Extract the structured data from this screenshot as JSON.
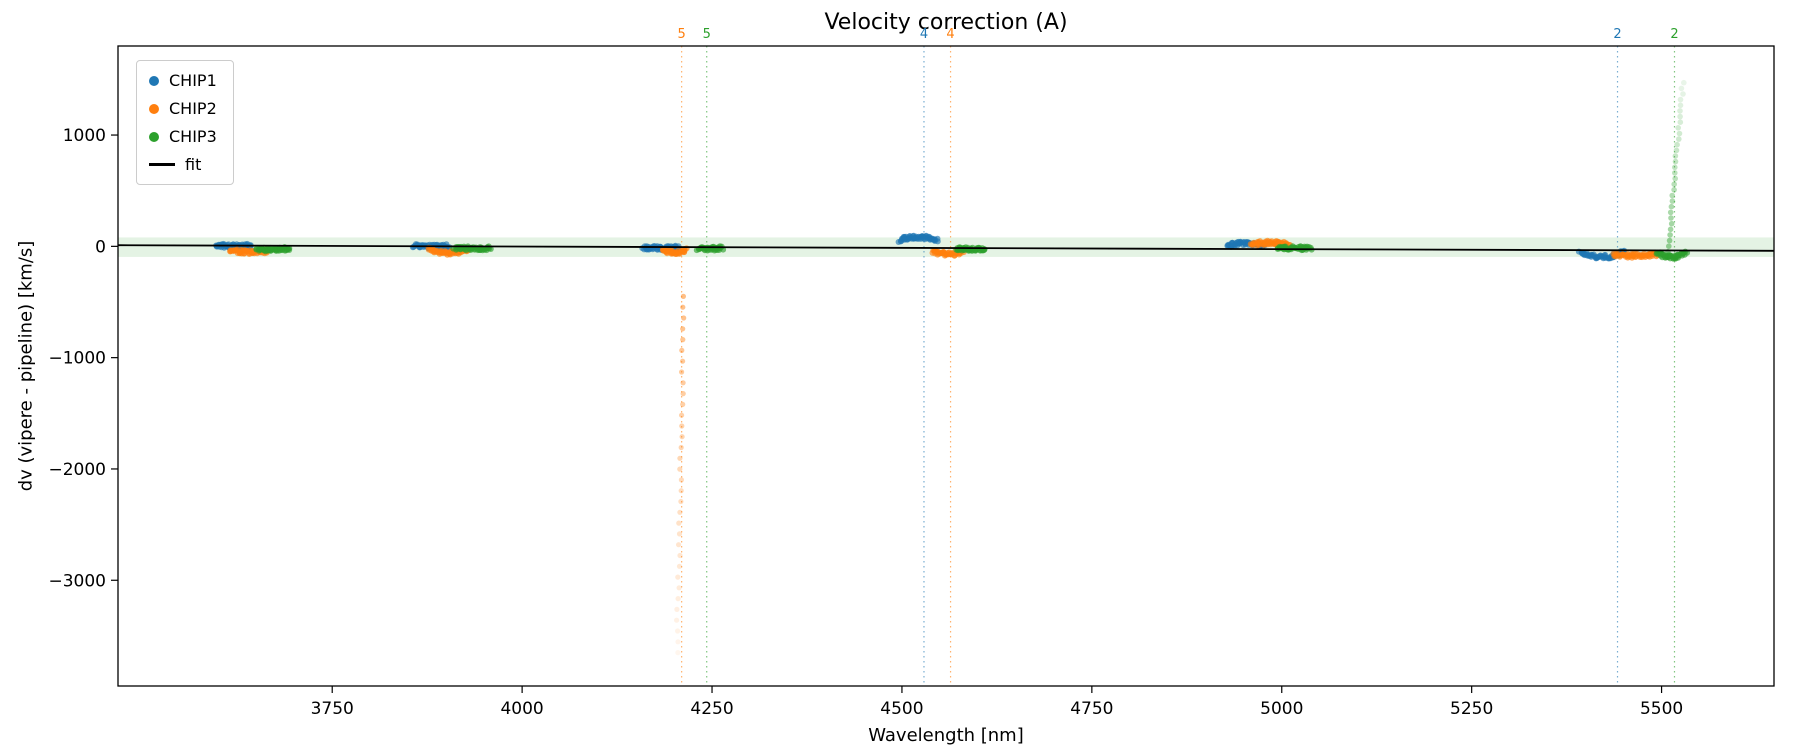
{
  "chart_data": {
    "type": "scatter",
    "title": "Velocity correction (A)",
    "xlabel": "Wavelength [nm]",
    "ylabel": "dv (vipere - pipeline) [km/s]",
    "xlim": [
      3468,
      5648
    ],
    "ylim": [
      -3950,
      1800
    ],
    "xticks": [
      3750,
      4000,
      4250,
      4500,
      4750,
      5000,
      5250,
      5500
    ],
    "yticks": [
      -3000,
      -2000,
      -1000,
      0,
      1000
    ],
    "grid": false,
    "band": {
      "y0": -95,
      "y1": 80,
      "color": "#2ca02c",
      "opacity": 0.13
    },
    "fit_line": {
      "label": "fit",
      "color": "#000000",
      "points": [
        [
          3468,
          10
        ],
        [
          5648,
          -40
        ]
      ]
    },
    "vlines": [
      {
        "x": 4210,
        "label": "5",
        "color": "#ff7f0e"
      },
      {
        "x": 4243,
        "label": "5",
        "color": "#2ca02c"
      },
      {
        "x": 4529,
        "label": "4",
        "color": "#1f77b4"
      },
      {
        "x": 4564,
        "label": "4",
        "color": "#ff7f0e"
      },
      {
        "x": 5442,
        "label": "2",
        "color": "#1f77b4"
      },
      {
        "x": 5517,
        "label": "2",
        "color": "#2ca02c"
      }
    ],
    "series": [
      {
        "name": "CHIP1",
        "color": "#1f77b4",
        "clusters": [
          {
            "x0": 3597,
            "x1": 3643,
            "y": 8,
            "bend": -6,
            "n": 55
          },
          {
            "x0": 3858,
            "x1": 3903,
            "y": 4,
            "bend": -6,
            "n": 55
          },
          {
            "x0": 4159,
            "x1": 4206,
            "y": -10,
            "bend": -6,
            "n": 55
          },
          {
            "x0": 4497,
            "x1": 4546,
            "y": 55,
            "bend": 28,
            "n": 60
          },
          {
            "x0": 4928,
            "x1": 4976,
            "y": 8,
            "bend": 18,
            "n": 55
          },
          {
            "x0": 5392,
            "x1": 5450,
            "y": -55,
            "bend": -40,
            "n": 60
          }
        ]
      },
      {
        "name": "CHIP2",
        "color": "#ff7f0e",
        "clusters": [
          {
            "x0": 3616,
            "x1": 3667,
            "y": -38,
            "bend": -14,
            "n": 55
          },
          {
            "x0": 3877,
            "x1": 3929,
            "y": -28,
            "bend": -30,
            "n": 55
          },
          {
            "x0": 4184,
            "x1": 4216,
            "y": -35,
            "bend": -20,
            "n": 40
          },
          {
            "x0": 4540,
            "x1": 4580,
            "y": -45,
            "bend": -25,
            "n": 45
          },
          {
            "x0": 4961,
            "x1": 5009,
            "y": 18,
            "bend": 15,
            "n": 55
          },
          {
            "x0": 5437,
            "x1": 5494,
            "y": -75,
            "bend": -10,
            "n": 55
          }
        ],
        "trail": {
          "xa": 4213,
          "xb": 4204,
          "ya": -450,
          "yb": -3650,
          "n": 34,
          "r": 2.6,
          "oa": 0.5,
          "ob": 0.07
        }
      },
      {
        "name": "CHIP3",
        "color": "#2ca02c",
        "clusters": [
          {
            "x0": 3651,
            "x1": 3693,
            "y": -22,
            "bend": -5,
            "n": 50
          },
          {
            "x0": 3911,
            "x1": 3958,
            "y": -14,
            "bend": -5,
            "n": 50
          },
          {
            "x0": 4231,
            "x1": 4263,
            "y": -16,
            "bend": -5,
            "n": 40
          },
          {
            "x0": 4571,
            "x1": 4609,
            "y": -20,
            "bend": -5,
            "n": 45
          },
          {
            "x0": 4994,
            "x1": 5038,
            "y": -12,
            "bend": -5,
            "n": 50
          },
          {
            "x0": 5494,
            "x1": 5532,
            "y": -60,
            "bend": -35,
            "n": 45
          }
        ],
        "trail": {
          "xa": 5508,
          "xb": 5528,
          "ya": -100,
          "yb": 1470,
          "n": 32,
          "r": 2.8,
          "oa": 0.5,
          "ob": 0.1
        }
      }
    ],
    "legend": {
      "position": "upper left",
      "entries": [
        {
          "label": "CHIP1",
          "color": "#1f77b4",
          "marker": "dot"
        },
        {
          "label": "CHIP2",
          "color": "#ff7f0e",
          "marker": "dot"
        },
        {
          "label": "CHIP3",
          "color": "#2ca02c",
          "marker": "dot"
        },
        {
          "label": "fit",
          "color": "#000000",
          "marker": "line"
        }
      ]
    }
  }
}
